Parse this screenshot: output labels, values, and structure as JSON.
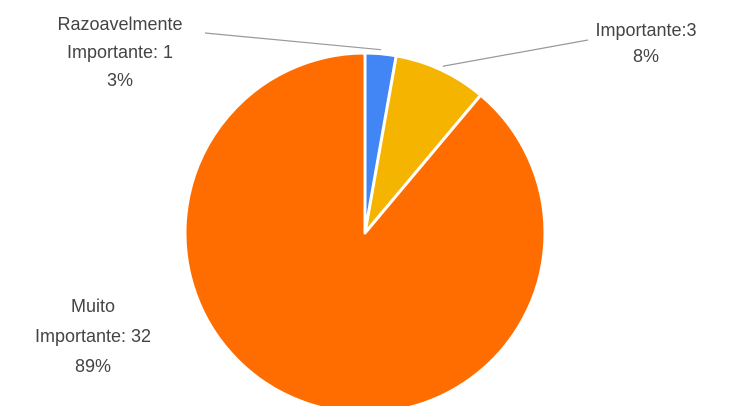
{
  "chart_data": {
    "type": "pie",
    "title": "",
    "legend": "none",
    "slices": [
      {
        "label_lines": [
          "Razoavelmente",
          "Importante: 1",
          "3%"
        ],
        "value": 1,
        "percent": "3%",
        "color": "#4285F4"
      },
      {
        "label_lines": [
          "Importante:3",
          "8%"
        ],
        "value": 3,
        "percent": "8%",
        "color": "#F4B400"
      },
      {
        "label_lines": [
          "Muito",
          "Importante: 32",
          "89%"
        ],
        "value": 32,
        "percent": "89%",
        "color": "#FF6D00"
      }
    ]
  },
  "colors": {
    "background": "#FFFFFF",
    "label_text": "#444444",
    "leader_line": "#999999",
    "slice_border": "#FFFFFF"
  }
}
